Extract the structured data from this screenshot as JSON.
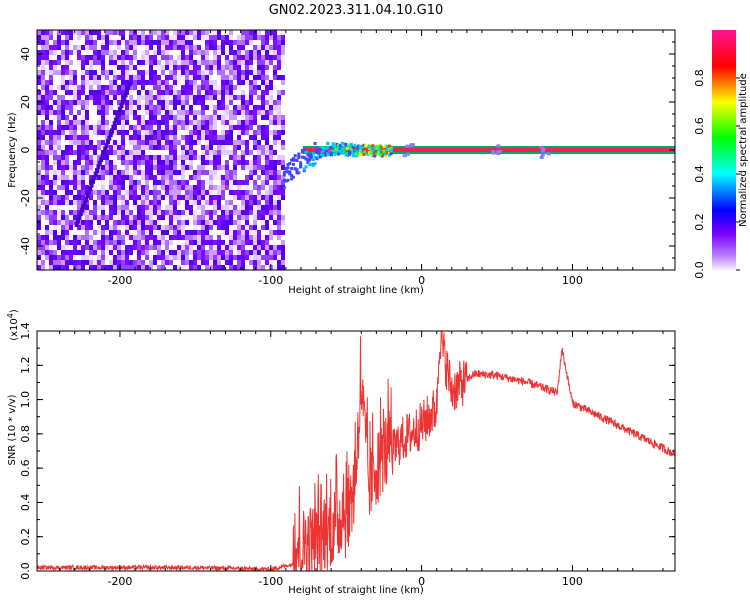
{
  "title": "GN02.2023.311.04.10.G10",
  "chart_data": [
    {
      "type": "heatmap",
      "xlabel": "Height of straight line (km)",
      "ylabel": "Frequency (Hz)",
      "xlim": [
        -255,
        168
      ],
      "ylim": [
        -50,
        50
      ],
      "x_ticks": [
        -200,
        -100,
        0,
        100
      ],
      "y_ticks": [
        -40,
        -20,
        0,
        20,
        40
      ],
      "colorbar": {
        "label": "Normalized spectral amplitude",
        "range": [
          0.0,
          1.0
        ],
        "ticks": [
          "0.0",
          "0.2",
          "0.4",
          "0.6",
          "0.8"
        ],
        "colors": [
          "#f4ecff",
          "#8800ff",
          "#0000ff",
          "#00ffff",
          "#00ff00",
          "#ffff00",
          "#ff0000",
          "#ff00a0"
        ]
      },
      "noise_region_x": [
        -255,
        -92
      ],
      "signal_track": [
        {
          "x": -92,
          "y": -12
        },
        {
          "x": -85,
          "y": -6
        },
        {
          "x": -75,
          "y": -2
        },
        {
          "x": -65,
          "y": 1
        },
        {
          "x": -55,
          "y": 1
        },
        {
          "x": -40,
          "y": 0.5
        },
        {
          "x": -25,
          "y": 0
        },
        {
          "x": 0,
          "y": 0
        },
        {
          "x": 168,
          "y": 0
        }
      ]
    },
    {
      "type": "line",
      "xlabel": "Height of straight line (km)",
      "ylabel": "SNR (10 * v/v)",
      "y_multiplier": "(x10",
      "y_multiplier_exp": "4",
      "y_multiplier_close": ")",
      "xlim": [
        -255,
        168
      ],
      "ylim": [
        0.0,
        1.4
      ],
      "x_ticks": [
        -200,
        -100,
        0,
        100
      ],
      "y_ticks": [
        "0.0",
        "0.2",
        "0.4",
        "0.6",
        "0.8",
        "1.0",
        "1.2",
        "1.4"
      ],
      "line_color": "#ee3333",
      "series": [
        {
          "values": [
            {
              "x": -255,
              "y": 0.02
            },
            {
              "x": -200,
              "y": 0.02
            },
            {
              "x": -150,
              "y": 0.02
            },
            {
              "x": -100,
              "y": 0.01
            },
            {
              "x": -80,
              "y": 0.05
            },
            {
              "x": -60,
              "y": 0.15
            },
            {
              "x": -45,
              "y": 0.35
            },
            {
              "x": -40,
              "y": 1.0
            },
            {
              "x": -35,
              "y": 0.4
            },
            {
              "x": -25,
              "y": 0.6
            },
            {
              "x": -15,
              "y": 0.75
            },
            {
              "x": 0,
              "y": 0.85
            },
            {
              "x": 10,
              "y": 0.95
            },
            {
              "x": 12,
              "y": 1.38
            },
            {
              "x": 20,
              "y": 1.05
            },
            {
              "x": 35,
              "y": 1.15
            },
            {
              "x": 50,
              "y": 1.14
            },
            {
              "x": 70,
              "y": 1.1
            },
            {
              "x": 90,
              "y": 1.04
            },
            {
              "x": 93,
              "y": 1.3
            },
            {
              "x": 100,
              "y": 0.98
            },
            {
              "x": 130,
              "y": 0.85
            },
            {
              "x": 168,
              "y": 0.68
            }
          ]
        }
      ]
    }
  ]
}
